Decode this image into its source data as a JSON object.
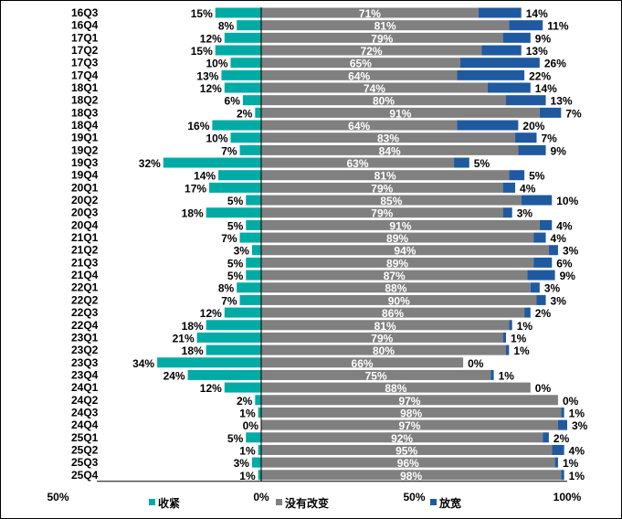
{
  "chart_data": {
    "type": "bar",
    "stacked": "diverging",
    "categories": [
      "16Q3",
      "16Q4",
      "17Q1",
      "17Q2",
      "17Q3",
      "17Q4",
      "18Q1",
      "18Q2",
      "18Q3",
      "18Q4",
      "19Q1",
      "19Q2",
      "19Q3",
      "19Q4",
      "20Q1",
      "20Q2",
      "20Q3",
      "20Q4",
      "21Q1",
      "21Q2",
      "21Q3",
      "21Q4",
      "22Q1",
      "22Q2",
      "22Q3",
      "22Q4",
      "23Q1",
      "23Q2",
      "23Q3",
      "23Q4",
      "24Q1",
      "24Q2",
      "24Q3",
      "24Q4",
      "25Q1",
      "25Q2",
      "25Q3",
      "25Q4"
    ],
    "series": [
      {
        "name": "收紧",
        "color": "#00ABA5",
        "direction": "left",
        "values": [
          15,
          8,
          12,
          15,
          10,
          13,
          12,
          6,
          2,
          16,
          10,
          7,
          32,
          14,
          17,
          5,
          18,
          5,
          7,
          3,
          5,
          5,
          8,
          7,
          12,
          18,
          21,
          18,
          34,
          24,
          12,
          2,
          1,
          0,
          5,
          1,
          3,
          1
        ]
      },
      {
        "name": "没有改变",
        "color": "#808080",
        "direction": "right",
        "values": [
          71,
          81,
          79,
          72,
          65,
          64,
          74,
          80,
          91,
          64,
          83,
          84,
          63,
          81,
          79,
          85,
          79,
          91,
          89,
          94,
          89,
          87,
          88,
          90,
          86,
          81,
          79,
          80,
          66,
          75,
          88,
          97,
          98,
          97,
          92,
          95,
          96,
          98
        ]
      },
      {
        "name": "放宽",
        "color": "#1F5AA0",
        "direction": "right",
        "values": [
          14,
          11,
          9,
          13,
          26,
          22,
          14,
          13,
          7,
          20,
          7,
          9,
          5,
          5,
          4,
          10,
          3,
          4,
          4,
          3,
          6,
          9,
          3,
          3,
          2,
          1,
          1,
          1,
          0,
          1,
          0,
          0,
          1,
          3,
          2,
          4,
          1,
          1
        ]
      }
    ],
    "xticks": [
      "50%",
      "0%",
      "50%",
      "100%"
    ],
    "xlim": [
      -50,
      100
    ],
    "legend": "bottom",
    "grid": false
  }
}
